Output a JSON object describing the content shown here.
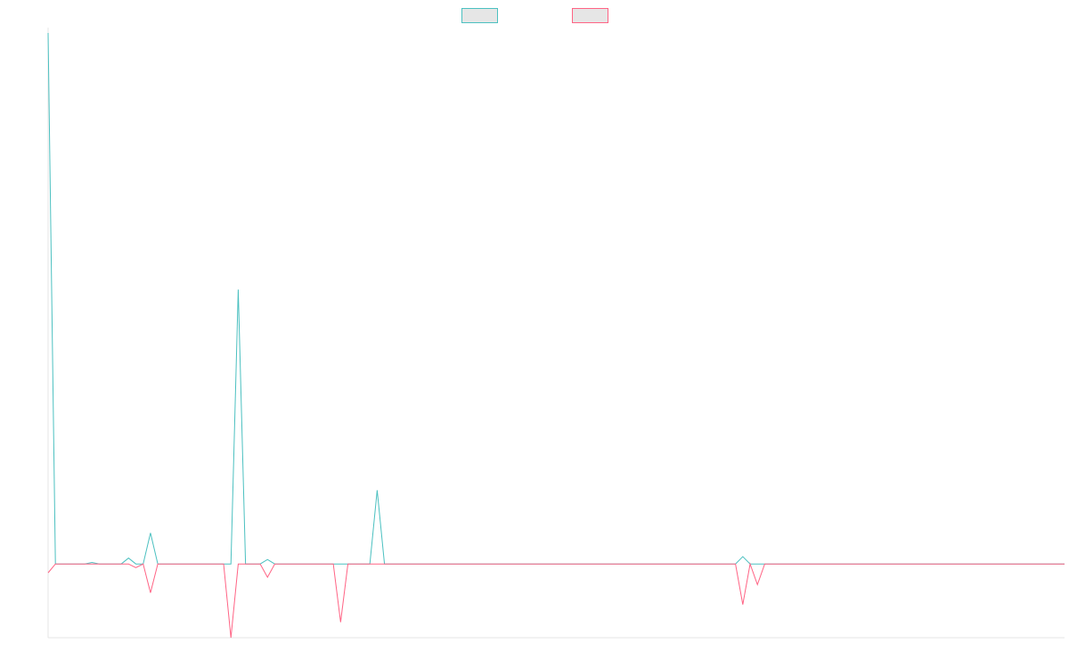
{
  "chart_data": {
    "type": "line",
    "title": "",
    "xlabel": "",
    "ylabel": "",
    "x": [
      0,
      1,
      2,
      3,
      4,
      5,
      6,
      7,
      8,
      9,
      10,
      11,
      12,
      13,
      14,
      15,
      16,
      17,
      18,
      19,
      20,
      21,
      22,
      23,
      24,
      25,
      26,
      27,
      28,
      29,
      30,
      31,
      32,
      33,
      34,
      35,
      36,
      37,
      38,
      39,
      40,
      41,
      42,
      43,
      44,
      45,
      46,
      47,
      48,
      49,
      50,
      51,
      52,
      53,
      54,
      55,
      56,
      57,
      58,
      59,
      60,
      61,
      62,
      63,
      64,
      65,
      66,
      67,
      68,
      69,
      70,
      71,
      72,
      73,
      74,
      75,
      76,
      77,
      78,
      79,
      80,
      81,
      82,
      83,
      84,
      85,
      86,
      87,
      88,
      89,
      90,
      91,
      92,
      93,
      94,
      95,
      96,
      97,
      98,
      99,
      100,
      101,
      102,
      103,
      104,
      105,
      106,
      107,
      108,
      109,
      110,
      111,
      112,
      113,
      114,
      115,
      116,
      117,
      118,
      119,
      120,
      121,
      122,
      123,
      124,
      125,
      126,
      127,
      128,
      129,
      130,
      131,
      132,
      133,
      134,
      135,
      136,
      137,
      138,
      139
    ],
    "series": [
      {
        "color": "#4bc0c0",
        "values": [
          72,
          0,
          0,
          0,
          0,
          0,
          0.2,
          0,
          0,
          0,
          0,
          0.8,
          0,
          0,
          4.2,
          0,
          0,
          0,
          0,
          0,
          0,
          0,
          0,
          0,
          0,
          0,
          37.2,
          0,
          0,
          0,
          0.6,
          0,
          0,
          0,
          0,
          0,
          0,
          0,
          0,
          0,
          0,
          0,
          0,
          0,
          0,
          10,
          0,
          0,
          0,
          0,
          0,
          0,
          0,
          0,
          0,
          0,
          0,
          0,
          0,
          0,
          0,
          0,
          0,
          0,
          0,
          0,
          0,
          0,
          0,
          0,
          0,
          0,
          0,
          0,
          0,
          0,
          0,
          0,
          0,
          0,
          0,
          0,
          0,
          0,
          0,
          0,
          0,
          0,
          0,
          0,
          0,
          0,
          0,
          0,
          0,
          1,
          0,
          0,
          0,
          0,
          0,
          0,
          0,
          0,
          0,
          0,
          0,
          0,
          0,
          0,
          0,
          0,
          0,
          0,
          0,
          0,
          0,
          0,
          0,
          0,
          0,
          0,
          0,
          0,
          0,
          0,
          0,
          0,
          0,
          0,
          0,
          0,
          0,
          0,
          0,
          0,
          0,
          0,
          0,
          0
        ]
      },
      {
        "color": "#ff6384",
        "values": [
          -1.2,
          0,
          0,
          0,
          0,
          0,
          0,
          0,
          0,
          0,
          0,
          0,
          -0.5,
          0,
          -3.9,
          0,
          0,
          0,
          0,
          0,
          0,
          0,
          0,
          0,
          0,
          -10,
          0,
          0,
          0,
          0,
          -1.8,
          0,
          0,
          0,
          0,
          0,
          0,
          0,
          0,
          0,
          -7.9,
          0,
          0,
          0,
          0,
          0,
          0,
          0,
          0,
          0,
          0,
          0,
          0,
          0,
          0,
          0,
          0,
          0,
          0,
          0,
          0,
          0,
          0,
          0,
          0,
          0,
          0,
          0,
          0,
          0,
          0,
          0,
          0,
          0,
          0,
          0,
          0,
          0,
          0,
          0,
          0,
          0,
          0,
          0,
          0,
          0,
          0,
          0,
          0,
          0,
          0,
          0,
          0,
          0,
          0,
          -5.5,
          0,
          -2.8,
          0,
          0,
          0,
          0,
          0,
          0,
          0,
          0,
          0,
          0,
          0,
          0,
          0,
          0,
          0,
          0,
          0,
          0,
          0,
          0,
          0,
          0,
          0,
          0,
          0,
          0,
          0,
          0,
          0,
          0,
          0,
          0,
          0,
          0,
          0,
          0,
          0,
          0,
          0,
          0,
          0,
          0
        ]
      }
    ],
    "ylim": [
      -10,
      72
    ],
    "grid": false,
    "legend": "top-center"
  }
}
